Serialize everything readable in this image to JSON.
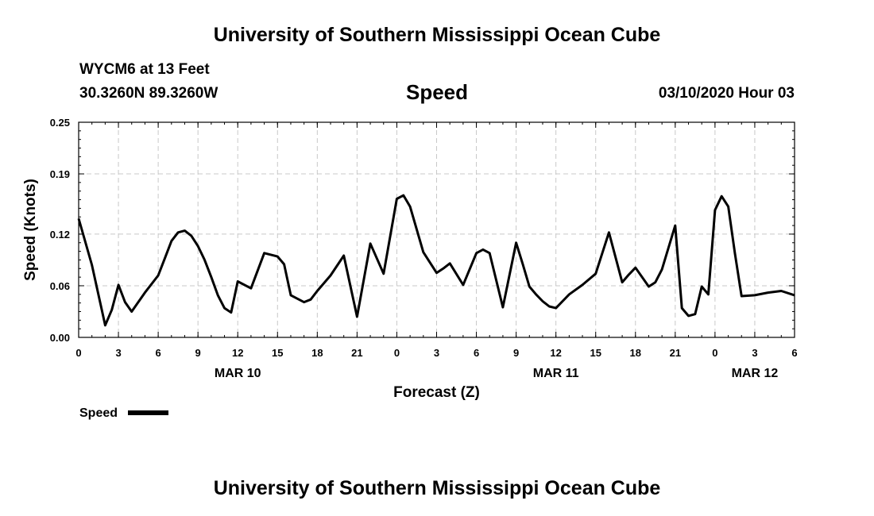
{
  "header": {
    "title_top": "University of Southern Mississippi Ocean Cube",
    "station": "WYCM6 at 13 Feet",
    "location": "30.3260N 89.3260W",
    "variable": "Speed",
    "datetime": "03/10/2020 Hour 03"
  },
  "footer": {
    "title_bottom": "University of Southern Mississippi Ocean Cube"
  },
  "chart_data": {
    "type": "line",
    "title": "Speed",
    "xlabel": "Forecast (Z)",
    "ylabel": "Speed (Knots)",
    "xlim": [
      0,
      54
    ],
    "ylim": [
      0,
      0.25
    ],
    "yticks": [
      0.0,
      0.06,
      0.12,
      0.19,
      0.25
    ],
    "ytick_labels": [
      "0.00",
      "0.06",
      "0.12",
      "0.19",
      "0.25"
    ],
    "xticks": [
      0,
      3,
      6,
      9,
      12,
      15,
      18,
      21,
      24,
      27,
      30,
      33,
      36,
      39,
      42,
      45,
      48,
      51,
      54
    ],
    "xtick_labels": [
      "0",
      "3",
      "6",
      "9",
      "12",
      "15",
      "18",
      "21",
      "0",
      "3",
      "6",
      "9",
      "12",
      "15",
      "18",
      "21",
      "0",
      "3",
      "6"
    ],
    "date_labels": [
      {
        "hour": 12,
        "label": "MAR 10"
      },
      {
        "hour": 36,
        "label": "MAR 11"
      },
      {
        "hour": 51,
        "label": "MAR 12"
      }
    ],
    "grid": true,
    "legend": {
      "label": "Speed",
      "placement": "bottom-left"
    },
    "series": [
      {
        "name": "Speed",
        "color": "#000000",
        "x": [
          0,
          1,
          2,
          2.5,
          3,
          3.5,
          4,
          5,
          6,
          6.5,
          7,
          7.5,
          8,
          8.5,
          9,
          9.5,
          10,
          10.5,
          11,
          11.5,
          12,
          13,
          14,
          15,
          15.5,
          16,
          17,
          17.5,
          18,
          19,
          20,
          21,
          22,
          23,
          24,
          24.5,
          25,
          26,
          27,
          27.5,
          28,
          29,
          30,
          30.5,
          31,
          32,
          33,
          33.5,
          34,
          34.5,
          35,
          35.5,
          36,
          37,
          38,
          39,
          40,
          41,
          41.5,
          42,
          43,
          43.5,
          44,
          45,
          45.5,
          46,
          46.5,
          47,
          47.5,
          48,
          48.5,
          49,
          49.5,
          50,
          51,
          52,
          53,
          54
        ],
        "values": [
          0.138,
          0.084,
          0.014,
          0.032,
          0.061,
          0.041,
          0.03,
          0.052,
          0.072,
          0.092,
          0.112,
          0.122,
          0.124,
          0.118,
          0.106,
          0.09,
          0.07,
          0.049,
          0.034,
          0.029,
          0.065,
          0.057,
          0.098,
          0.094,
          0.085,
          0.049,
          0.041,
          0.044,
          0.054,
          0.072,
          0.095,
          0.024,
          0.109,
          0.074,
          0.161,
          0.165,
          0.152,
          0.099,
          0.075,
          0.08,
          0.086,
          0.061,
          0.098,
          0.102,
          0.098,
          0.035,
          0.11,
          0.085,
          0.059,
          0.05,
          0.042,
          0.036,
          0.034,
          0.05,
          0.061,
          0.074,
          0.122,
          0.064,
          0.073,
          0.081,
          0.059,
          0.064,
          0.079,
          0.13,
          0.034,
          0.025,
          0.027,
          0.059,
          0.05,
          0.148,
          0.164,
          0.152,
          0.098,
          0.048,
          0.049,
          0.052,
          0.054,
          0.049
        ]
      }
    ]
  }
}
